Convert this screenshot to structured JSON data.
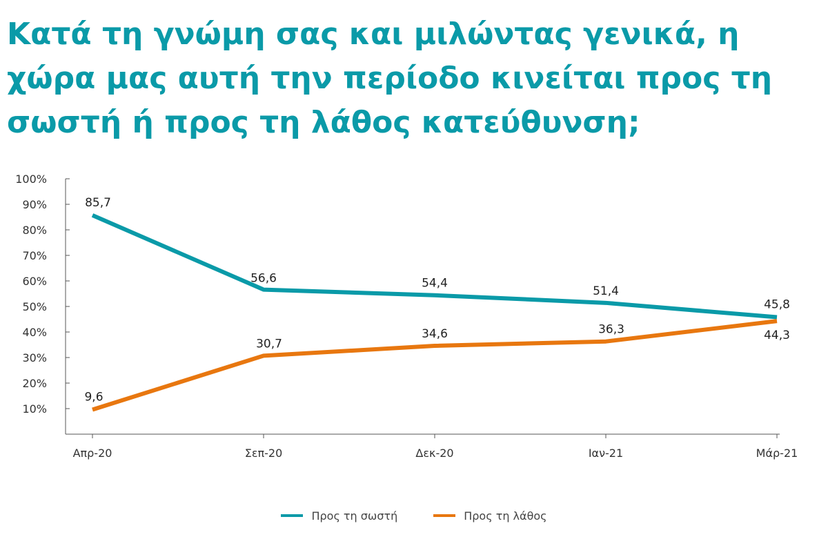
{
  "chart_data": {
    "type": "line",
    "title": "Κατά τη γνώμη σας και μιλώντας γενικά, η χώρα μας αυτή την περίοδο κινείται προς τη σωστή ή προς τη λάθος κατεύθυνση;",
    "categories": [
      "Απρ-20",
      "Σεπ-20",
      "Δεκ-20",
      "Ιαν-21",
      "Μάρ-21"
    ],
    "y_ticks": [
      "10%",
      "20%",
      "30%",
      "40%",
      "50%",
      "60%",
      "70%",
      "80%",
      "90%",
      "100%"
    ],
    "ylim": [
      0,
      100
    ],
    "grid": false,
    "legend_position": "bottom",
    "series": [
      {
        "name": "Προς τη σωστή",
        "color": "#0a9aa8",
        "values": [
          85.7,
          56.6,
          54.4,
          51.4,
          45.8
        ],
        "labels": [
          "85,7",
          "56,6",
          "54,4",
          "51,4",
          "45,8"
        ]
      },
      {
        "name": "Προς τη λάθος",
        "color": "#e8770f",
        "values": [
          9.6,
          30.7,
          34.6,
          36.3,
          44.3
        ],
        "labels": [
          "9,6",
          "30,7",
          "34,6",
          "36,3",
          "44,3"
        ]
      }
    ]
  }
}
